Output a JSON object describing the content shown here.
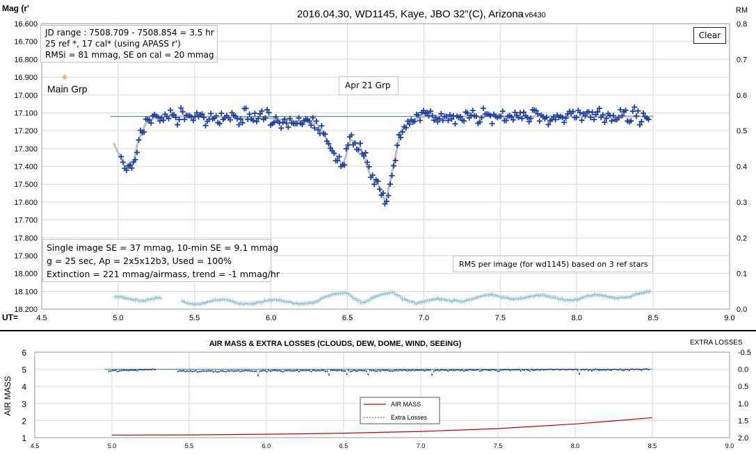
{
  "top_chart": {
    "title": "2016.04.30,  WD1145, Kaye, JBO 32\"(C), Arizona",
    "version": "- v6430",
    "ylabel": "Mag (r'",
    "y2label": "RM",
    "xlabel": "UT=",
    "clear_button": "Clear",
    "info_box": [
      "JD range  : 7508.709 - 7508.854  = 3.5 hr",
      "  25 ref *, 17 cal* (using APASS r')",
      "RMSi = 81 mmag, SE on cal = 20 mmag"
    ],
    "stats_box": [
      "Single image SE = 37 mmag, 10-min SE = 9.1 mmag",
      "g = 25 sec, Ap = 2x5x12b3, Used = 100%",
      "Extinction = 221 mmag/airmass, trend = -1 mmag/hr"
    ],
    "rms_note": "RMS per image (for wd1145) based on 3 ref stars",
    "apr21_label": "Apr 21 Grp",
    "main_grp_label": "Main Grp",
    "y_ticks": [
      "16.600",
      "16.700",
      "16.800",
      "16.900",
      "17.000",
      "17.100",
      "17.200",
      "17.300",
      "17.400",
      "17.500",
      "17.600",
      "17.700",
      "17.800",
      "17.900",
      "18.000",
      "18.100",
      "18.200"
    ],
    "y2_ticks": [
      "0.8",
      "0.7",
      "0.6",
      "0.5",
      "0.4",
      "0.3",
      "0.2",
      "0.1",
      "0.0"
    ],
    "x_ticks": [
      "4.5",
      "5.0",
      "5.5",
      "6.0",
      "6.5",
      "7.0",
      "7.5",
      "8.0",
      "8.5",
      "9.0"
    ]
  },
  "bottom_chart": {
    "title": "AIR MASS & EXTRA LOSSES (CLOUDS, DEW, DOME, WIND, SEEING)",
    "ylabel": "AIR MASS",
    "y2label": "EXTRA LOSSES",
    "y_ticks": [
      "6",
      "5",
      "4",
      "3",
      "2",
      "1"
    ],
    "y2_ticks": [
      "-0.5",
      "0.0",
      "0.5",
      "1.0",
      "1.5",
      "2.0"
    ],
    "x_ticks": [
      "4.5",
      "5.0",
      "5.5",
      "6.0",
      "6.5",
      "7.0",
      "7.5",
      "8.0",
      "8.5",
      "9.0"
    ],
    "legend": [
      "AIR MASS",
      "Extra Losses"
    ]
  },
  "colors": {
    "points": "#1f3f9f",
    "fit": "#bfbfbf",
    "reference": "#2e8b57",
    "rms": "#8fbfcf",
    "airmass": "#c00000",
    "losses": "#1f3f9f",
    "main_grp_marker": "#f4b183"
  },
  "chart_data": [
    {
      "type": "scatter",
      "title": "2016.04.30,  WD1145, Kaye, JBO 32\"(C), Arizona",
      "xlabel": "UT=",
      "ylabel": "Mag (r'",
      "y2label": "RM",
      "xlim": [
        4.5,
        9.0
      ],
      "ylim": [
        18.2,
        16.6
      ],
      "y2lim": [
        0.0,
        0.8
      ],
      "y_inverted": true,
      "grid": true,
      "reference_level": 17.12,
      "main_grp_point": [
        4.65,
        16.9
      ],
      "magnitude_profile_x": [
        4.97,
        5.05,
        5.1,
        5.13,
        5.18,
        5.25,
        5.5,
        6.0,
        6.3,
        6.4,
        6.47,
        6.52,
        6.58,
        6.65,
        6.7,
        6.75,
        6.8,
        6.85,
        6.92,
        7.0,
        7.5,
        8.0,
        8.5
      ],
      "magnitude_profile_y": [
        17.27,
        17.41,
        17.38,
        17.26,
        17.16,
        17.12,
        17.12,
        17.13,
        17.16,
        17.3,
        17.4,
        17.25,
        17.28,
        17.45,
        17.5,
        17.6,
        17.4,
        17.2,
        17.14,
        17.12,
        17.12,
        17.12,
        17.12
      ],
      "rms_profile_x": [
        4.97,
        5.25,
        5.45,
        5.7,
        6.0,
        6.3,
        6.5,
        6.6,
        6.8,
        6.95,
        7.0,
        7.3,
        7.5,
        8.0,
        8.4,
        8.5
      ],
      "rms_profile_y": [
        0.03,
        0.03,
        0.02,
        0.02,
        0.02,
        0.02,
        0.05,
        0.02,
        0.045,
        0.02,
        0.02,
        0.03,
        0.035,
        0.03,
        0.04,
        0.045
      ]
    },
    {
      "type": "line",
      "title": "AIR MASS & EXTRA LOSSES (CLOUDS, DEW, DOME, WIND, SEEING)",
      "ylabel": "AIR MASS",
      "y2label": "EXTRA LOSSES",
      "xlim": [
        4.5,
        9.0
      ],
      "ylim": [
        1,
        6
      ],
      "y2lim": [
        2.0,
        -0.5
      ],
      "grid": true,
      "legend_position": "bottom-center",
      "series": [
        {
          "name": "AIR MASS",
          "x": [
            5.0,
            5.5,
            6.0,
            6.5,
            7.0,
            7.5,
            8.0,
            8.25,
            8.5
          ],
          "values": [
            1.15,
            1.16,
            1.2,
            1.26,
            1.36,
            1.53,
            1.8,
            1.98,
            2.17
          ]
        },
        {
          "name": "Extra Losses",
          "x": [
            4.97,
            5.25,
            5.45,
            8.5
          ],
          "values": [
            0.05,
            0.0,
            0.05,
            0.0
          ]
        }
      ]
    }
  ]
}
